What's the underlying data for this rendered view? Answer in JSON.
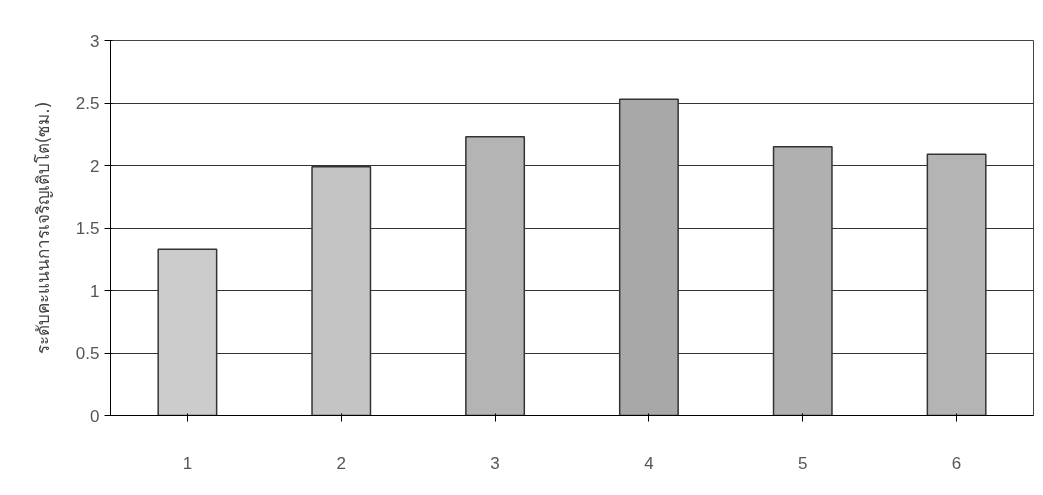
{
  "chart_data": {
    "type": "bar",
    "ylabel": "ระดับคะแนนการเจริญเติบโต(ซม.)",
    "categories": [
      "1",
      "2",
      "3",
      "4",
      "5",
      "6"
    ],
    "values": [
      1.33,
      1.99,
      2.23,
      2.53,
      2.15,
      2.09
    ],
    "colors": [
      "#cccccc",
      "#c4c4c4",
      "#b4b4b4",
      "#a8a8a8",
      "#b0b0b0",
      "#b4b4b4"
    ],
    "ylim": [
      0,
      3
    ],
    "yticks": [
      0,
      0.5,
      1,
      1.5,
      2,
      2.5,
      3
    ],
    "grid": "y"
  }
}
